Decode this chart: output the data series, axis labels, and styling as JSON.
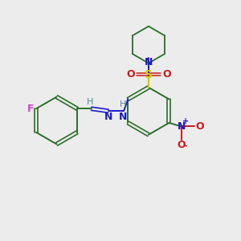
{
  "bg_color": "#ececec",
  "bond_color": "#2a6e2a",
  "N_color": "#1a1acc",
  "O_color": "#cc1a1a",
  "S_color": "#cccc00",
  "F_color": "#cc44cc",
  "H_color": "#4e8a8a",
  "figsize": [
    3.0,
    3.0
  ],
  "dpi": 100,
  "xlim": [
    0,
    10
  ],
  "ylim": [
    0,
    10
  ]
}
